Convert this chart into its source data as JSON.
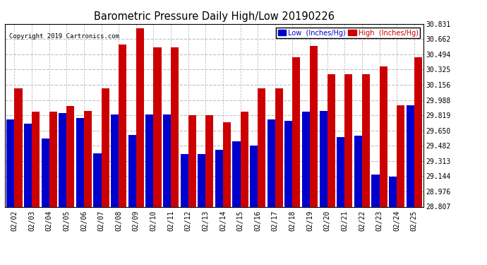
{
  "title": "Barometric Pressure Daily High/Low 20190226",
  "copyright": "Copyright 2019 Cartronics.com",
  "dates": [
    "02/02",
    "02/03",
    "02/04",
    "02/05",
    "02/06",
    "02/07",
    "02/08",
    "02/09",
    "02/10",
    "02/11",
    "02/12",
    "02/13",
    "02/14",
    "02/15",
    "02/16",
    "02/17",
    "02/18",
    "02/19",
    "02/20",
    "02/21",
    "02/22",
    "02/23",
    "02/24",
    "02/25"
  ],
  "lows": [
    29.77,
    29.73,
    29.56,
    29.84,
    29.79,
    29.4,
    29.83,
    29.6,
    29.83,
    29.83,
    29.39,
    29.39,
    29.44,
    29.53,
    29.48,
    29.77,
    29.76,
    29.86,
    29.87,
    29.58,
    29.59,
    29.16,
    29.14,
    29.93
  ],
  "highs": [
    30.12,
    29.86,
    29.86,
    29.92,
    29.87,
    30.12,
    30.6,
    30.78,
    30.57,
    30.57,
    29.82,
    29.82,
    29.74,
    29.86,
    30.12,
    30.12,
    30.46,
    30.59,
    30.27,
    30.27,
    30.27,
    30.36,
    29.93,
    30.46
  ],
  "low_color": "#0000cc",
  "high_color": "#cc0000",
  "ylim_min": 28.807,
  "ylim_max": 30.831,
  "yticks": [
    28.807,
    28.976,
    29.144,
    29.313,
    29.482,
    29.65,
    29.819,
    29.988,
    30.156,
    30.325,
    30.494,
    30.662,
    30.831
  ],
  "background_color": "#ffffff",
  "plot_bg_color": "#ffffff",
  "grid_color": "#c0c0c0",
  "legend_low_label": "Low  (Inches/Hg)",
  "legend_high_label": "High  (Inches/Hg)"
}
